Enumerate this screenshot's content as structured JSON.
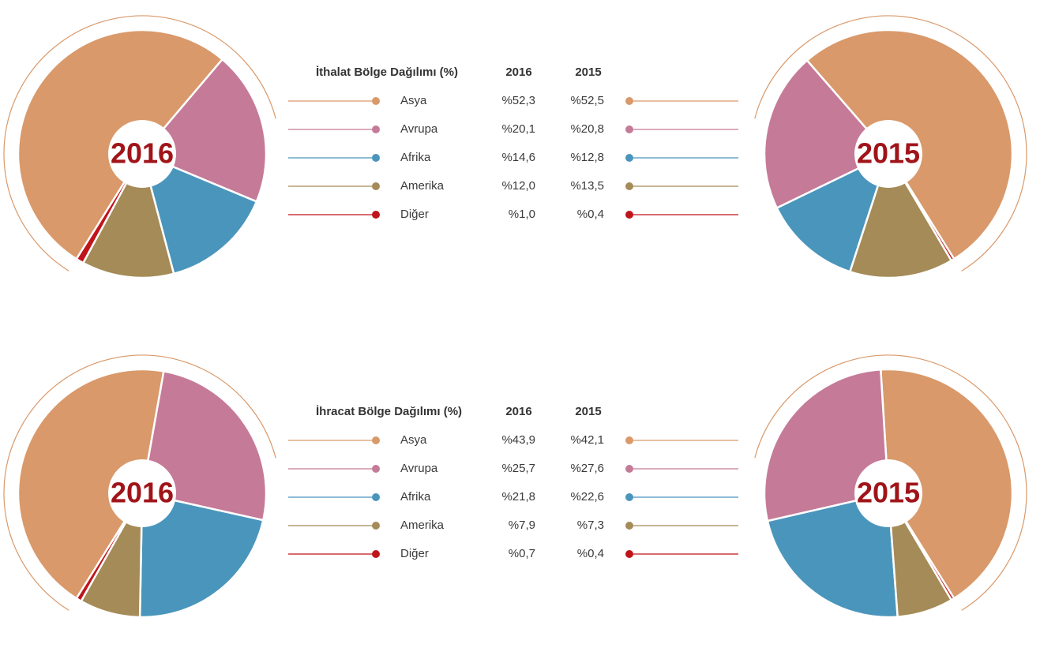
{
  "chart_data": [
    {
      "type": "pie",
      "title": "İthalat Bölge Dağılımı (%)",
      "categories": [
        "Asya",
        "Avrupa",
        "Afrika",
        "Amerika",
        "Diğer"
      ],
      "colors": [
        "#d9996a",
        "#c57a98",
        "#4a95bc",
        "#a58b57",
        "#c0141b"
      ],
      "series": [
        {
          "name": "2016",
          "values": [
            52.3,
            20.1,
            14.6,
            12.0,
            1.0
          ],
          "value_labels": [
            "%52,3",
            "%20,1",
            "%14,6",
            "%12,0",
            "%1,0"
          ]
        },
        {
          "name": "2015",
          "values": [
            52.5,
            20.8,
            12.8,
            13.5,
            0.4
          ],
          "value_labels": [
            "%52,5",
            "%20,8",
            "%12,8",
            "%13,5",
            "%0,4"
          ]
        }
      ]
    },
    {
      "type": "pie",
      "title": "İhracat Bölge Dağılımı (%)",
      "categories": [
        "Asya",
        "Avrupa",
        "Afrika",
        "Amerika",
        "Diğer"
      ],
      "colors": [
        "#d9996a",
        "#c57a98",
        "#4a95bc",
        "#a58b57",
        "#c0141b"
      ],
      "series": [
        {
          "name": "2016",
          "values": [
            43.9,
            25.7,
            21.8,
            7.9,
            0.7
          ],
          "value_labels": [
            "%43,9",
            "%25,7",
            "%21,8",
            "%7,9",
            "%0,7"
          ]
        },
        {
          "name": "2015",
          "values": [
            42.1,
            27.6,
            22.6,
            7.3,
            0.4
          ],
          "value_labels": [
            "%42,1",
            "%27,6",
            "%22,6",
            "%7,3",
            "%0,4"
          ]
        }
      ]
    }
  ]
}
